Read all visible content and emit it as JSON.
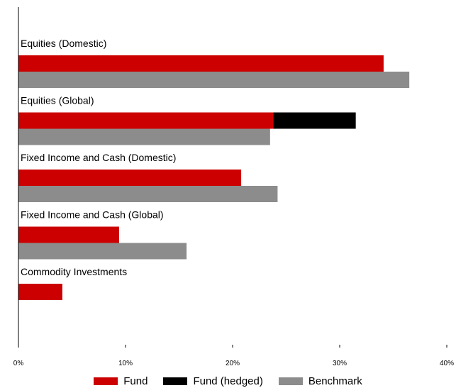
{
  "chart_data": {
    "type": "bar",
    "orientation": "horizontal",
    "categories": [
      "Equities (Domestic)",
      "Equities (Global)",
      "Fixed Income and Cash (Domestic)",
      "Fixed Income and Cash (Global)",
      "Commodity Investments"
    ],
    "series": [
      {
        "name": "Fund",
        "color": "#cc0000",
        "values": [
          34.1,
          23.8,
          20.8,
          9.4,
          4.1
        ]
      },
      {
        "name": "Fund (hedged)",
        "color": "#000000",
        "values": [
          0,
          7.7,
          0,
          0,
          0
        ],
        "stacked_on": "Fund"
      },
      {
        "name": "Benchmark",
        "color": "#8c8c8c",
        "values": [
          36.5,
          23.5,
          24.2,
          15.7,
          0
        ]
      }
    ],
    "xlim": [
      0,
      40
    ],
    "xticks": [
      "0%",
      "10%",
      "20%",
      "30%",
      "40%"
    ],
    "title": "",
    "xlabel": "",
    "ylabel": "",
    "legend_position": "bottom",
    "grid": false
  }
}
